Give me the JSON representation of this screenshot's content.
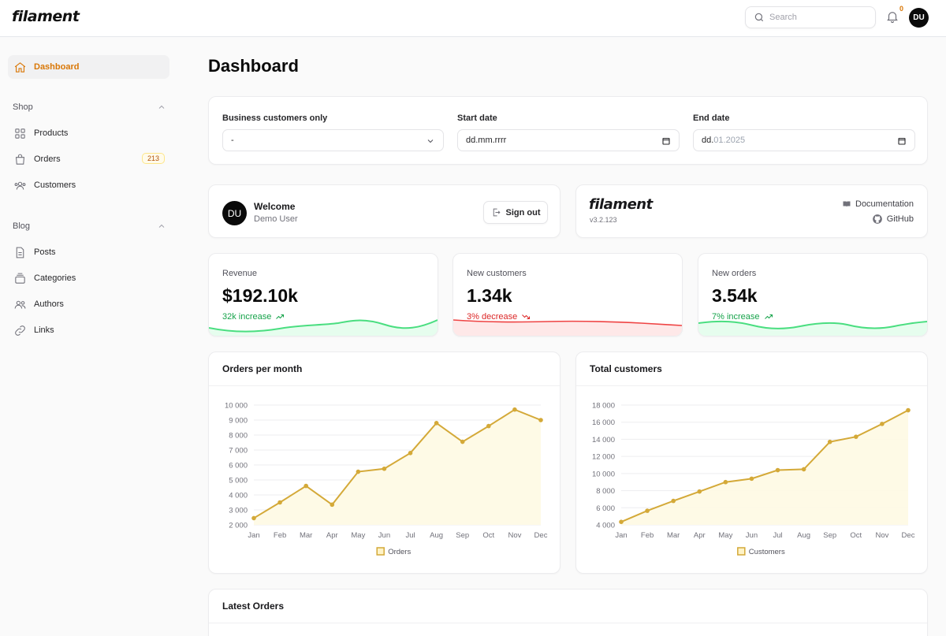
{
  "app": {
    "logo": "filament"
  },
  "topbar": {
    "search_placeholder": "Search",
    "notifications_count": "0",
    "user_initials": "DU"
  },
  "sidebar": {
    "dashboard": "Dashboard",
    "groups": [
      {
        "label": "Shop",
        "items": [
          {
            "label": "Products"
          },
          {
            "label": "Orders",
            "count": "213"
          },
          {
            "label": "Customers"
          }
        ]
      },
      {
        "label": "Blog",
        "items": [
          {
            "label": "Posts"
          },
          {
            "label": "Categories"
          },
          {
            "label": "Authors"
          },
          {
            "label": "Links"
          }
        ]
      }
    ]
  },
  "page": {
    "title": "Dashboard"
  },
  "filters": {
    "business": {
      "label": "Business customers only",
      "value": "-"
    },
    "start": {
      "label": "Start date",
      "value": "dd.mm.rrrr"
    },
    "end": {
      "label": "End date",
      "value_prefix": "dd.",
      "value_rest": "01.2025"
    }
  },
  "welcome": {
    "initials": "DU",
    "title": "Welcome",
    "name": "Demo User",
    "signout": "Sign out"
  },
  "brand": {
    "logo": "filament",
    "version": "v3.2.123",
    "docs": "Documentation",
    "github": "GitHub"
  },
  "stats": [
    {
      "label": "Revenue",
      "value": "$192.10k",
      "desc": "32k increase",
      "trend": "up",
      "color": "#16a34a"
    },
    {
      "label": "New customers",
      "value": "1.34k",
      "desc": "3% decrease",
      "trend": "down",
      "color": "#dc2626"
    },
    {
      "label": "New orders",
      "value": "3.54k",
      "desc": "7% increase",
      "trend": "up",
      "color": "#16a34a"
    }
  ],
  "chart_data": [
    {
      "type": "line",
      "title": "Orders per month",
      "categories": [
        "Jan",
        "Feb",
        "Mar",
        "Apr",
        "May",
        "Jun",
        "Jul",
        "Aug",
        "Sep",
        "Oct",
        "Nov",
        "Dec"
      ],
      "series": [
        {
          "name": "Orders",
          "values": [
            2450,
            3500,
            4600,
            3350,
            5550,
            5750,
            6800,
            8800,
            7550,
            8600,
            9700,
            9000
          ]
        }
      ],
      "yticks": [
        "10 000",
        "9 000",
        "8 000",
        "7 000",
        "6 000",
        "5 000",
        "4 000",
        "3 000",
        "2 000"
      ],
      "ylim": [
        2000,
        10000
      ],
      "color": "#d4a938",
      "legend": "bottom"
    },
    {
      "type": "line",
      "title": "Total customers",
      "categories": [
        "Jan",
        "Feb",
        "Mar",
        "Apr",
        "May",
        "Jun",
        "Jul",
        "Aug",
        "Sep",
        "Oct",
        "Nov",
        "Dec"
      ],
      "series": [
        {
          "name": "Customers",
          "values": [
            4350,
            5650,
            6800,
            7900,
            9000,
            9400,
            10400,
            10500,
            13700,
            14300,
            15800,
            17400
          ]
        }
      ],
      "yticks": [
        "18 000",
        "16 000",
        "14 000",
        "12 000",
        "10 000",
        "8 000",
        "6 000",
        "4 000"
      ],
      "ylim": [
        4000,
        18000
      ],
      "color": "#d4a938",
      "legend": "bottom"
    }
  ],
  "latest_orders": {
    "title": "Latest Orders"
  }
}
